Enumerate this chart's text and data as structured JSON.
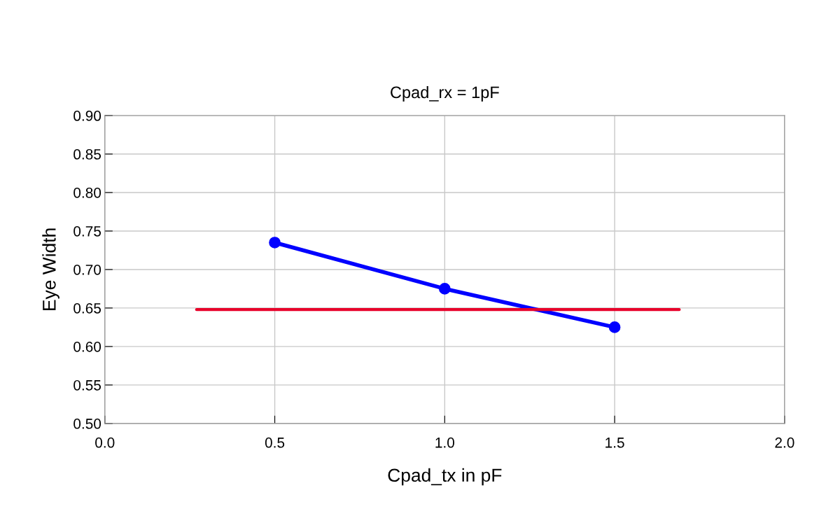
{
  "chart_data": {
    "type": "line",
    "title": "Cpad_rx = 1pF",
    "xlabel": "Cpad_tx in pF",
    "ylabel": "Eye Width",
    "series": [
      {
        "color": "#0000ff",
        "x": [
          0.5,
          1.0,
          1.5
        ],
        "values": [
          0.735,
          0.675,
          0.625
        ],
        "marker": "circle"
      },
      {
        "color": "#e8002a",
        "x": [
          0.27,
          1.69
        ],
        "values": [
          0.648,
          0.648
        ],
        "marker": "none"
      }
    ],
    "xlim": [
      0,
      2
    ],
    "xticks": [
      {
        "value": 0,
        "label": "0.0"
      },
      {
        "value": 0.5,
        "label": "0.5"
      },
      {
        "value": 1,
        "label": "1.0"
      },
      {
        "value": 1.5,
        "label": "1.5"
      },
      {
        "value": 2,
        "label": "2.0"
      }
    ],
    "ylim": [
      0.5,
      0.9
    ],
    "yticks": [
      {
        "value": 0.5,
        "label": "0.50"
      },
      {
        "value": 0.55,
        "label": "0.55"
      },
      {
        "value": 0.6,
        "label": "0.60"
      },
      {
        "value": 0.65,
        "label": "0.65"
      },
      {
        "value": 0.7,
        "label": "0.70"
      },
      {
        "value": 0.75,
        "label": "0.75"
      },
      {
        "value": 0.8,
        "label": "0.80"
      },
      {
        "value": 0.85,
        "label": "0.85"
      },
      {
        "value": 0.9,
        "label": "0.90"
      }
    ],
    "grid": true
  }
}
